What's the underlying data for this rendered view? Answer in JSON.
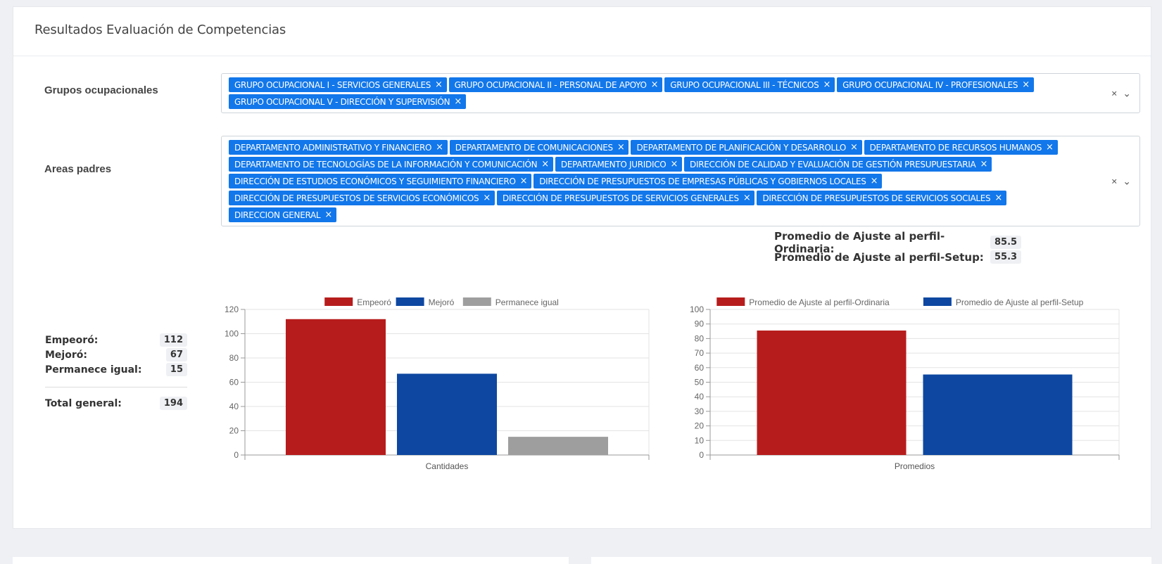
{
  "header": {
    "title": "Resultados Evaluación de Competencias"
  },
  "filters": {
    "groups_label": "Grupos ocupacionales",
    "groups": [
      "GRUPO OCUPACIONAL I - SERVICIOS GENERALES",
      "GRUPO OCUPACIONAL II - PERSONAL DE APOYO",
      "GRUPO OCUPACIONAL III - TÉCNICOS",
      "GRUPO OCUPACIONAL IV - PROFESIONALES",
      "GRUPO OCUPACIONAL V - DIRECCIÓN Y SUPERVISIÓN"
    ],
    "areas_label": "Areas padres",
    "areas": [
      "DEPARTAMENTO ADMINISTRATIVO Y FINANCIERO",
      "DEPARTAMENTO DE COMUNICACIONES",
      "DEPARTAMENTO DE PLANIFICACIÓN Y DESARROLLO",
      "DEPARTAMENTO DE RECURSOS HUMANOS",
      "DEPARTAMENTO DE TECNOLOGÍAS DE LA INFORMACIÓN Y COMUNICACIÓN",
      "DEPARTAMENTO JURIDICO",
      "DIRECCIÓN DE CALIDAD Y EVALUACIÓN DE GESTIÓN PRESUPUESTARIA",
      "DIRECCIÓN DE ESTUDIOS ECONÓMICOS Y SEGUIMIENTO FINANCIERO",
      "DIRECCIÓN DE PRESUPUESTOS DE EMPRESAS PÚBLICAS Y GOBIERNOS LOCALES",
      "DIRECCIÓN DE PRESUPUESTOS DE SERVICIOS ECONÓMICOS",
      "DIRECCIÓN DE PRESUPUESTOS DE SERVICIOS GENERALES",
      "DIRECCIÓN DE PRESUPUESTOS DE SERVICIOS SOCIALES",
      "DIRECCION GENERAL"
    ],
    "clear_glyph": "×",
    "dropdown_glyph": "⌄"
  },
  "averages": {
    "ordinaria_label": "Promedio de Ajuste al perfil-Ordinaria:",
    "ordinaria_value": "85.5",
    "setup_label": "Promedio de Ajuste al perfil-Setup:",
    "setup_value": "55.3"
  },
  "summary": {
    "empeoro_label": "Empeoró:",
    "empeoro_value": "112",
    "mejoro_label": "Mejoró:",
    "mejoro_value": "67",
    "igual_label": "Permanece igual:",
    "igual_value": "15",
    "total_label": "Total general:",
    "total_value": "194"
  },
  "chart_data": [
    {
      "type": "bar",
      "categories": [
        "Cantidades"
      ],
      "xlabel": "Cantidades",
      "ylim": [
        0,
        120
      ],
      "yticks": [
        0,
        20,
        40,
        60,
        80,
        100,
        120
      ],
      "legend_position": "top",
      "grid": true,
      "series": [
        {
          "name": "Empeoró",
          "values": [
            112
          ],
          "color": "#b71c1c"
        },
        {
          "name": "Mejoró",
          "values": [
            67
          ],
          "color": "#0d47a1"
        },
        {
          "name": "Permanece igual",
          "values": [
            15
          ],
          "color": "#9e9e9e"
        }
      ]
    },
    {
      "type": "bar",
      "categories": [
        "Promedios"
      ],
      "xlabel": "Promedios",
      "ylim": [
        0,
        100
      ],
      "yticks": [
        0,
        10,
        20,
        30,
        40,
        50,
        60,
        70,
        80,
        90,
        100
      ],
      "legend_position": "top",
      "grid": true,
      "series": [
        {
          "name": "Promedio de Ajuste al perfil-Ordinaria",
          "values": [
            85.5
          ],
          "color": "#b71c1c"
        },
        {
          "name": "Promedio de Ajuste al perfil-Setup",
          "values": [
            55.3
          ],
          "color": "#0d47a1"
        }
      ]
    }
  ]
}
